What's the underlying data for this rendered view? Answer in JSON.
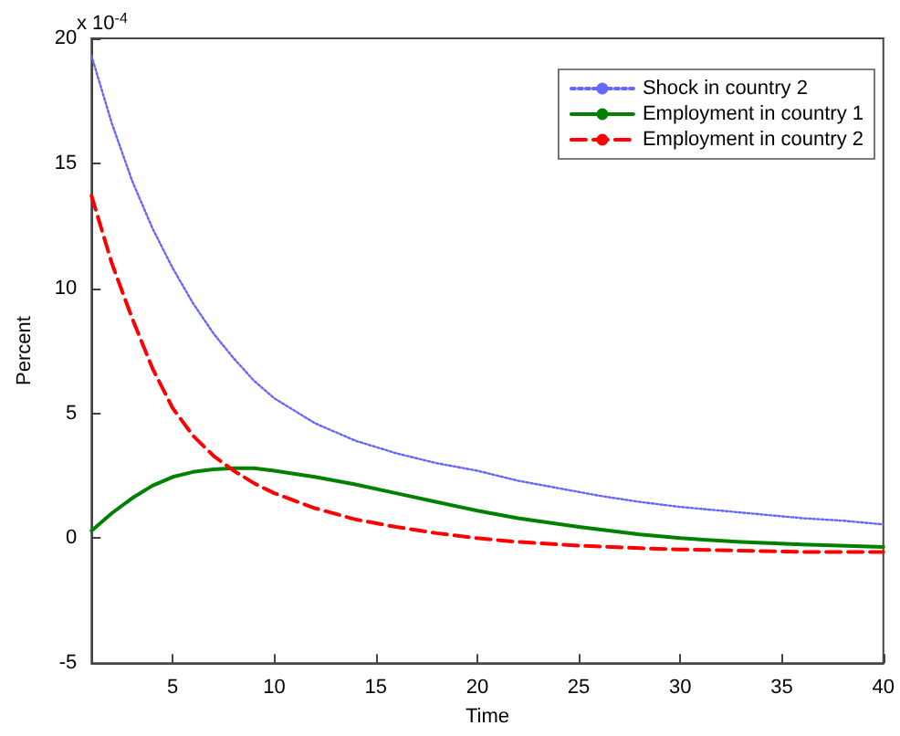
{
  "chart_data": {
    "type": "line",
    "xlabel": "Time",
    "ylabel": "Percent",
    "annotations": [
      "x 10$^{-4}$"
    ],
    "xlim": [
      1,
      40
    ],
    "xticks": [
      5,
      10,
      15,
      20,
      25,
      30,
      35,
      40
    ],
    "ylim": [
      -5,
      20
    ],
    "yticks": [
      -5,
      0,
      5,
      10,
      15,
      20
    ],
    "grid": false,
    "legend": "top right",
    "marker": "none",
    "series": [
      {
        "name": "Shock in country 2",
        "color": "#6666ff",
        "line_style": "dotted",
        "x": [
          1,
          2,
          3,
          4,
          5,
          6,
          7,
          8,
          9,
          10,
          12,
          14,
          16,
          18,
          20,
          22,
          24,
          26,
          28,
          30,
          32,
          34,
          36,
          38,
          40
        ],
        "values": [
          19.3,
          16.6,
          14.3,
          12.4,
          10.8,
          9.4,
          8.2,
          7.2,
          6.3,
          5.6,
          4.6,
          3.9,
          3.4,
          3.0,
          2.7,
          2.3,
          2.0,
          1.7,
          1.45,
          1.25,
          1.1,
          0.95,
          0.8,
          0.7,
          0.55
        ]
      },
      {
        "name": "Employment in country 1",
        "color": "#008000",
        "line_style": "solid",
        "x": [
          1,
          2,
          3,
          4,
          5,
          6,
          7,
          8,
          9,
          10,
          12,
          14,
          16,
          18,
          20,
          22,
          25,
          28,
          30,
          33,
          36,
          40
        ],
        "values": [
          0.3,
          1.0,
          1.6,
          2.1,
          2.45,
          2.65,
          2.75,
          2.8,
          2.8,
          2.7,
          2.45,
          2.15,
          1.8,
          1.45,
          1.1,
          0.8,
          0.45,
          0.15,
          0.0,
          -0.15,
          -0.25,
          -0.35
        ]
      },
      {
        "name": "Employment in country 2",
        "color": "#ff0000",
        "line_style": "dashed",
        "x": [
          1,
          2,
          3,
          4,
          5,
          6,
          7,
          8,
          9,
          10,
          12,
          14,
          16,
          18,
          20,
          22,
          25,
          28,
          30,
          33,
          36,
          40
        ],
        "values": [
          13.7,
          11.0,
          8.8,
          6.8,
          5.2,
          4.1,
          3.3,
          2.7,
          2.2,
          1.8,
          1.2,
          0.75,
          0.45,
          0.2,
          0.0,
          -0.15,
          -0.3,
          -0.4,
          -0.45,
          -0.5,
          -0.55,
          -0.55
        ]
      }
    ]
  }
}
